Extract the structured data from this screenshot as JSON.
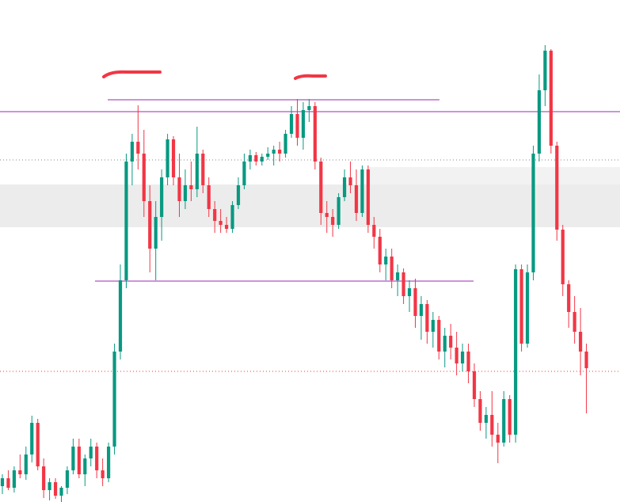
{
  "chart_data": {
    "type": "candlestick",
    "up_color": "#089981",
    "down_color": "#f23645",
    "ylim": [
      0,
      634
    ],
    "open": [
      20,
      30,
      18,
      40,
      35,
      60,
      100,
      45,
      15,
      25,
      8,
      18,
      40,
      70,
      35,
      55,
      70,
      40,
      30,
      70,
      190,
      280,
      430,
      455,
      440,
      380,
      320,
      360,
      410,
      458,
      410,
      380,
      400,
      395,
      440,
      400,
      370,
      355,
      350,
      345,
      375,
      400,
      430,
      438,
      430,
      436,
      440,
      445,
      440,
      465,
      490,
      460,
      495,
      500,
      430,
      365,
      360,
      350,
      385,
      410,
      400,
      365,
      420,
      350,
      335,
      300,
      310,
      280,
      290,
      260,
      270,
      235,
      250,
      215,
      230,
      190,
      210,
      195,
      175,
      190,
      165,
      130,
      100,
      110,
      85,
      75,
      130,
      85,
      294,
      200,
      290,
      440,
      520,
      570,
      450,
      344,
      275,
      240,
      215,
      190
    ],
    "high": [
      35,
      40,
      45,
      60,
      70,
      109,
      105,
      55,
      30,
      30,
      20,
      45,
      80,
      80,
      60,
      80,
      75,
      55,
      75,
      200,
      300,
      440,
      465,
      501,
      470,
      400,
      380,
      420,
      465,
      462,
      440,
      420,
      430,
      474,
      445,
      410,
      380,
      370,
      360,
      380,
      410,
      440,
      445,
      442,
      440,
      448,
      450,
      455,
      470,
      500,
      509,
      505,
      509,
      505,
      435,
      380,
      370,
      390,
      420,
      430,
      420,
      425,
      425,
      360,
      345,
      320,
      320,
      300,
      295,
      280,
      282,
      260,
      255,
      240,
      235,
      220,
      225,
      215,
      200,
      200,
      175,
      140,
      120,
      140,
      100,
      140,
      135,
      300,
      300,
      300,
      450,
      540,
      577,
      572,
      455,
      350,
      280,
      260,
      245,
      200
    ],
    "low": [
      10,
      15,
      12,
      30,
      28,
      50,
      40,
      5,
      2,
      4,
      0,
      10,
      35,
      30,
      20,
      45,
      30,
      20,
      25,
      60,
      180,
      270,
      400,
      420,
      360,
      290,
      280,
      330,
      400,
      400,
      360,
      370,
      380,
      385,
      390,
      360,
      340,
      340,
      340,
      340,
      370,
      395,
      420,
      425,
      425,
      432,
      425,
      430,
      435,
      460,
      450,
      445,
      480,
      420,
      350,
      340,
      335,
      345,
      380,
      390,
      355,
      360,
      340,
      320,
      290,
      280,
      270,
      260,
      250,
      240,
      220,
      205,
      200,
      195,
      180,
      170,
      180,
      160,
      165,
      150,
      120,
      90,
      80,
      70,
      49,
      70,
      75,
      75,
      190,
      195,
      280,
      430,
      500,
      440,
      330,
      260,
      220,
      200,
      160,
      112
    ],
    "close": [
      30,
      18,
      40,
      35,
      60,
      100,
      45,
      15,
      25,
      8,
      18,
      40,
      70,
      35,
      55,
      70,
      40,
      30,
      70,
      190,
      280,
      430,
      455,
      440,
      380,
      320,
      360,
      410,
      458,
      410,
      380,
      400,
      395,
      440,
      400,
      370,
      355,
      350,
      345,
      375,
      400,
      430,
      438,
      430,
      436,
      440,
      445,
      440,
      465,
      490,
      460,
      495,
      500,
      430,
      365,
      360,
      350,
      385,
      410,
      400,
      365,
      420,
      350,
      335,
      300,
      310,
      280,
      290,
      260,
      270,
      235,
      250,
      215,
      230,
      190,
      210,
      195,
      175,
      190,
      165,
      130,
      100,
      110,
      85,
      75,
      130,
      85,
      294,
      200,
      290,
      440,
      520,
      570,
      450,
      344,
      275,
      240,
      215,
      190,
      169
    ],
    "levels": [
      {
        "value": 508,
        "color": "#9c27b0",
        "style": "solid"
      },
      {
        "value": 493,
        "color": "#9c27b0",
        "style": "solid"
      },
      {
        "value": 279,
        "color": "#9c27b0",
        "style": "solid"
      },
      {
        "value": 432,
        "color": "#888888",
        "style": "dotted"
      },
      {
        "value": 165,
        "color": "#f23645",
        "style": "dotted"
      }
    ],
    "bands": [
      {
        "range": [
          347,
          401
        ],
        "color": "#ececec"
      },
      {
        "range": [
          401,
          423
        ],
        "color": "#f2f2f2"
      }
    ]
  }
}
